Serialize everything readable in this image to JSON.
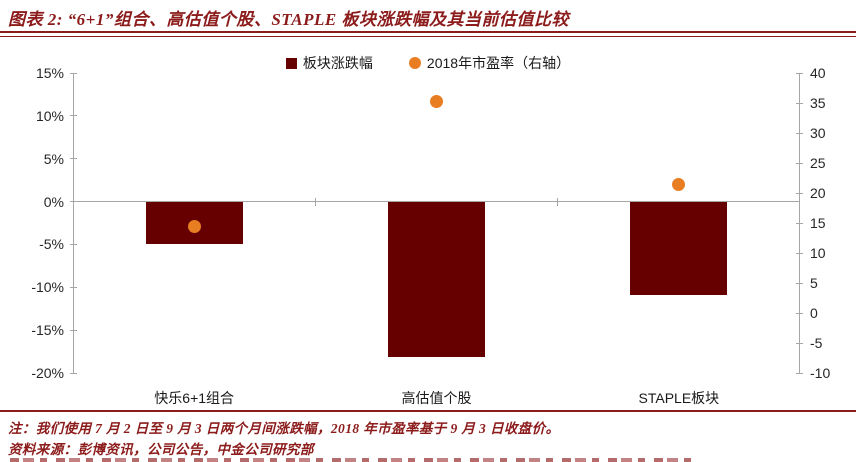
{
  "header": {
    "title": "图表 2:  “6+1”组合、高估值个股、STAPLE 板块涨跌幅及其当前估值比较",
    "rule_color": "#8C1B1B"
  },
  "legend": {
    "items": [
      {
        "label": "板块涨跌幅",
        "marker": "square",
        "color": "#660000"
      },
      {
        "label": "2018年市盈率（右轴）",
        "marker": "circle",
        "color": "#E87D22"
      }
    ]
  },
  "chart_data": {
    "type": "bar",
    "subtype": "bar-and-scatter-combo-dual-axis",
    "categories": [
      "快乐6+1组合",
      "高估值个股",
      "STAPLE板块"
    ],
    "series": [
      {
        "name": "板块涨跌幅",
        "type": "bar",
        "axis": "left",
        "values": [
          -4.9,
          -18.1,
          -10.9
        ],
        "color": "#660000"
      },
      {
        "name": "2018年市盈率（右轴）",
        "type": "scatter",
        "axis": "right",
        "values": [
          14.4,
          35.3,
          21.5
        ],
        "color": "#E87D22"
      }
    ],
    "left_axis": {
      "min": -20,
      "max": 15,
      "tick_values": [
        15,
        10,
        5,
        0,
        -5,
        -10,
        -15,
        -20
      ],
      "tick_labels": [
        "15%",
        "10%",
        "5%",
        "0%",
        "-5%",
        "-10%",
        "-15%",
        "-20%"
      ]
    },
    "right_axis": {
      "min": -10,
      "max": 40,
      "tick_values": [
        40,
        35,
        30,
        25,
        20,
        15,
        10,
        5,
        0,
        -5,
        -10
      ],
      "tick_labels": [
        "40",
        "35",
        "30",
        "25",
        "20",
        "15",
        "10",
        "5",
        "0",
        "-5",
        "-10"
      ]
    },
    "grid": false,
    "legend_position": "top-center",
    "axis_color": "#A6A6A6",
    "label_color": "#262626"
  },
  "notes": {
    "note1": "注：我们使用 7 月 2 日至 9 月 3 日两个月间涨跌幅，2018 年市盈率基于 9 月 3 日收盘价。",
    "note2": "资料来源：彭博资讯，公司公告，中金公司研究部"
  }
}
